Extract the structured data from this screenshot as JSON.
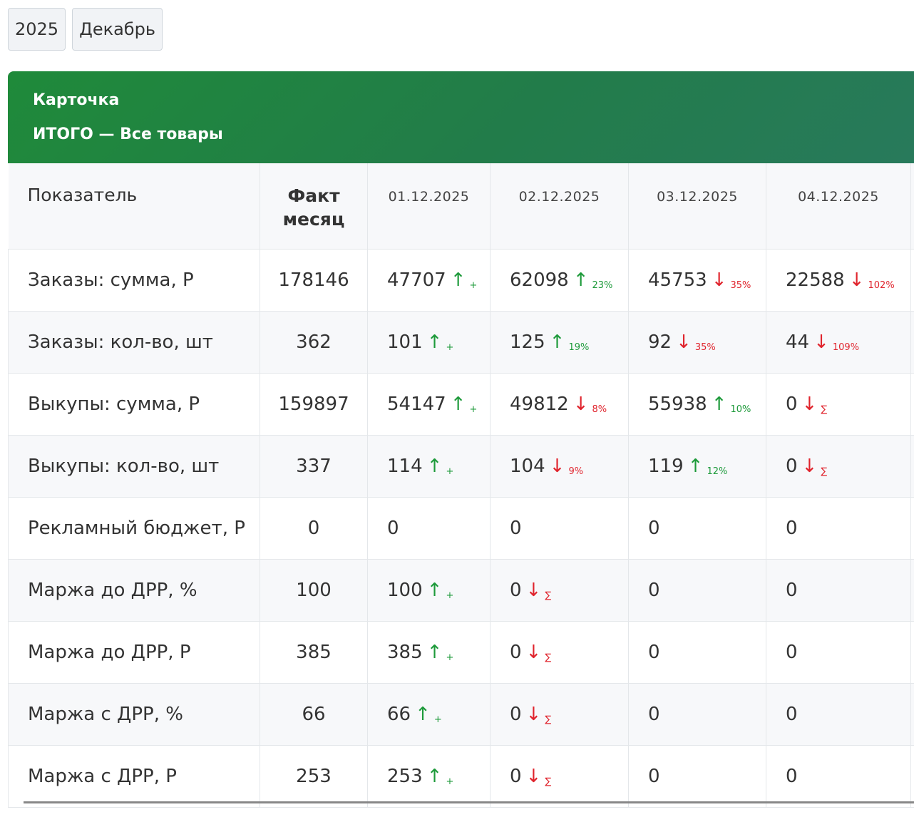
{
  "filters": {
    "year": "2025",
    "month": "Декабрь"
  },
  "card": {
    "title": "Карточка",
    "subtitle": "ИТОГО — Все товары"
  },
  "table": {
    "headers": {
      "metric": "Показатель",
      "fact_line1": "Факт",
      "fact_line2": "месяц",
      "dates": [
        "01.12.2025",
        "02.12.2025",
        "03.12.2025",
        "04.12.2025"
      ]
    },
    "rows": [
      {
        "label": "Заказы: сумма, Р",
        "fact": "178146",
        "days": [
          {
            "value": "47707",
            "arrow": "↑",
            "dir": "up",
            "delta": "+"
          },
          {
            "value": "62098",
            "arrow": "↑",
            "dir": "up",
            "delta": "23%"
          },
          {
            "value": "45753",
            "arrow": "↓",
            "dir": "down",
            "delta": "35%"
          },
          {
            "value": "22588",
            "arrow": "↓",
            "dir": "down",
            "delta": "102%"
          }
        ]
      },
      {
        "label": "Заказы: кол-во, шт",
        "fact": "362",
        "days": [
          {
            "value": "101",
            "arrow": "↑",
            "dir": "up",
            "delta": "+"
          },
          {
            "value": "125",
            "arrow": "↑",
            "dir": "up",
            "delta": "19%"
          },
          {
            "value": "92",
            "arrow": "↓",
            "dir": "down",
            "delta": "35%"
          },
          {
            "value": "44",
            "arrow": "↓",
            "dir": "down",
            "delta": "109%"
          }
        ]
      },
      {
        "label": "Выкупы: сумма, Р",
        "fact": "159897",
        "days": [
          {
            "value": "54147",
            "arrow": "↑",
            "dir": "up",
            "delta": "+"
          },
          {
            "value": "49812",
            "arrow": "↓",
            "dir": "down",
            "delta": "8%"
          },
          {
            "value": "55938",
            "arrow": "↑",
            "dir": "up",
            "delta": "10%"
          },
          {
            "value": "0",
            "arrow": "↓",
            "dir": "down",
            "delta": "∑"
          }
        ]
      },
      {
        "label": "Выкупы: кол-во, шт",
        "fact": "337",
        "days": [
          {
            "value": "114",
            "arrow": "↑",
            "dir": "up",
            "delta": "+"
          },
          {
            "value": "104",
            "arrow": "↓",
            "dir": "down",
            "delta": "9%"
          },
          {
            "value": "119",
            "arrow": "↑",
            "dir": "up",
            "delta": "12%"
          },
          {
            "value": "0",
            "arrow": "↓",
            "dir": "down",
            "delta": "∑"
          }
        ]
      },
      {
        "label": "Рекламный бюджет, Р",
        "fact": "0",
        "days": [
          {
            "value": "0",
            "arrow": "",
            "dir": "",
            "delta": ""
          },
          {
            "value": "0",
            "arrow": "",
            "dir": "",
            "delta": ""
          },
          {
            "value": "0",
            "arrow": "",
            "dir": "",
            "delta": ""
          },
          {
            "value": "0",
            "arrow": "",
            "dir": "",
            "delta": ""
          }
        ]
      },
      {
        "label": "Маржа до ДРР, %",
        "fact": "100",
        "days": [
          {
            "value": "100",
            "arrow": "↑",
            "dir": "up",
            "delta": "+"
          },
          {
            "value": "0",
            "arrow": "↓",
            "dir": "down",
            "delta": "∑"
          },
          {
            "value": "0",
            "arrow": "",
            "dir": "",
            "delta": ""
          },
          {
            "value": "0",
            "arrow": "",
            "dir": "",
            "delta": ""
          }
        ]
      },
      {
        "label": "Маржа до ДРР, Р",
        "fact": "385",
        "days": [
          {
            "value": "385",
            "arrow": "↑",
            "dir": "up",
            "delta": "+"
          },
          {
            "value": "0",
            "arrow": "↓",
            "dir": "down",
            "delta": "∑"
          },
          {
            "value": "0",
            "arrow": "",
            "dir": "",
            "delta": ""
          },
          {
            "value": "0",
            "arrow": "",
            "dir": "",
            "delta": ""
          }
        ]
      },
      {
        "label": "Маржа с ДРР, %",
        "fact": "66",
        "days": [
          {
            "value": "66",
            "arrow": "↑",
            "dir": "up",
            "delta": "+"
          },
          {
            "value": "0",
            "arrow": "↓",
            "dir": "down",
            "delta": "∑"
          },
          {
            "value": "0",
            "arrow": "",
            "dir": "",
            "delta": ""
          },
          {
            "value": "0",
            "arrow": "",
            "dir": "",
            "delta": ""
          }
        ]
      },
      {
        "label": "Маржа с ДРР, Р",
        "fact": "253",
        "days": [
          {
            "value": "253",
            "arrow": "↑",
            "dir": "up",
            "delta": "+"
          },
          {
            "value": "0",
            "arrow": "↓",
            "dir": "down",
            "delta": "∑"
          },
          {
            "value": "0",
            "arrow": "",
            "dir": "",
            "delta": ""
          },
          {
            "value": "0",
            "arrow": "",
            "dir": "",
            "delta": ""
          }
        ]
      }
    ]
  },
  "colors": {
    "header_green": "#1f8a3a",
    "up": "#1d9a3a",
    "down": "#e0242d"
  }
}
